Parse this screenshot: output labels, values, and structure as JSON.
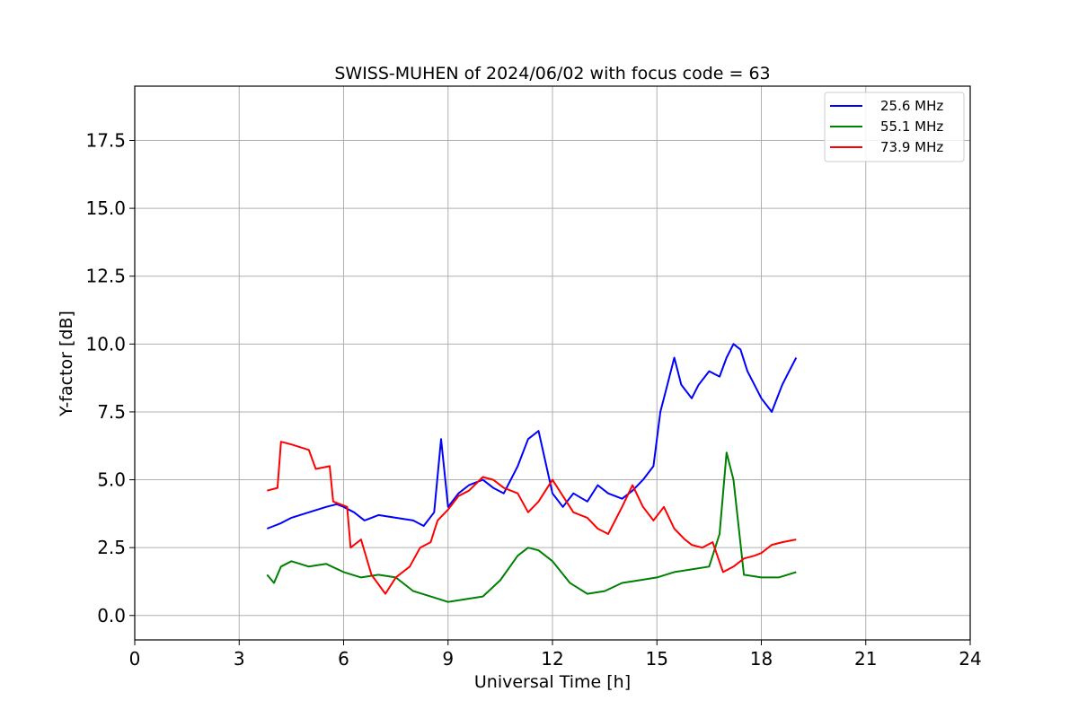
{
  "chart_data": {
    "type": "line",
    "title": "SWISS-MUHEN of 2024/06/02 with focus code = 63",
    "xlabel": "Universal Time [h]",
    "ylabel": "Y-factor [dB]",
    "xlim": [
      0,
      24
    ],
    "ylim": [
      -0.9,
      19.5
    ],
    "xticks": [
      0,
      3,
      6,
      9,
      12,
      15,
      18,
      21,
      24
    ],
    "xtick_labels": [
      "0",
      "3",
      "6",
      "9",
      "12",
      "15",
      "18",
      "21",
      "24"
    ],
    "yticks": [
      0,
      2.5,
      5,
      7.5,
      10,
      12.5,
      15,
      17.5
    ],
    "ytick_labels": [
      "0.0",
      "2.5",
      "5.0",
      "7.5",
      "10.0",
      "12.5",
      "15.0",
      "17.5"
    ],
    "grid": true,
    "legend_position": "top-right",
    "series": [
      {
        "name": "25.6 MHz",
        "color": "#0000ff",
        "x": [
          3.8,
          4.0,
          4.2,
          4.5,
          5.0,
          5.5,
          5.8,
          6.0,
          6.3,
          6.6,
          7.0,
          7.5,
          8.0,
          8.3,
          8.6,
          8.8,
          9.0,
          9.3,
          9.6,
          10.0,
          10.3,
          10.6,
          11.0,
          11.3,
          11.6,
          12.0,
          12.3,
          12.6,
          13.0,
          13.3,
          13.6,
          14.0,
          14.3,
          14.6,
          14.9,
          15.1,
          15.3,
          15.5,
          15.7,
          16.0,
          16.2,
          16.5,
          16.8,
          17.0,
          17.2,
          17.4,
          17.6,
          17.8,
          18.0,
          18.3,
          18.6,
          18.8,
          19.0
        ],
        "y": [
          3.2,
          3.3,
          3.4,
          3.6,
          3.8,
          4.0,
          4.1,
          4.0,
          3.8,
          3.5,
          3.7,
          3.6,
          3.5,
          3.3,
          3.8,
          6.5,
          4.0,
          4.5,
          4.8,
          5.0,
          4.7,
          4.5,
          5.5,
          6.5,
          6.8,
          4.5,
          4.0,
          4.5,
          4.2,
          4.8,
          4.5,
          4.3,
          4.6,
          5.0,
          5.5,
          7.5,
          8.5,
          9.5,
          8.5,
          8.0,
          8.5,
          9.0,
          8.8,
          9.5,
          10.0,
          9.8,
          9.0,
          8.5,
          8.0,
          7.5,
          8.5,
          9.0,
          9.5
        ]
      },
      {
        "name": "55.1 MHz",
        "color": "#008000",
        "x": [
          3.8,
          4.0,
          4.2,
          4.5,
          5.0,
          5.5,
          6.0,
          6.5,
          7.0,
          7.5,
          8.0,
          8.5,
          9.0,
          9.5,
          10.0,
          10.5,
          11.0,
          11.3,
          11.6,
          12.0,
          12.5,
          13.0,
          13.5,
          14.0,
          14.5,
          15.0,
          15.5,
          16.0,
          16.5,
          16.8,
          17.0,
          17.2,
          17.5,
          18.0,
          18.5,
          19.0
        ],
        "y": [
          1.5,
          1.2,
          1.8,
          2.0,
          1.8,
          1.9,
          1.6,
          1.4,
          1.5,
          1.4,
          0.9,
          0.7,
          0.5,
          0.6,
          0.7,
          1.3,
          2.2,
          2.5,
          2.4,
          2.0,
          1.2,
          0.8,
          0.9,
          1.2,
          1.3,
          1.4,
          1.6,
          1.7,
          1.8,
          3.0,
          6.0,
          5.0,
          1.5,
          1.4,
          1.4,
          1.6
        ]
      },
      {
        "name": "73.9 MHz",
        "color": "#ff0000",
        "x": [
          3.8,
          4.1,
          4.2,
          4.5,
          5.0,
          5.2,
          5.6,
          5.7,
          6.1,
          6.2,
          6.5,
          6.8,
          7.2,
          7.5,
          7.9,
          8.2,
          8.5,
          8.7,
          9.0,
          9.3,
          9.6,
          10.0,
          10.3,
          10.6,
          11.0,
          11.3,
          11.6,
          12.0,
          12.3,
          12.6,
          13.0,
          13.3,
          13.6,
          14.0,
          14.3,
          14.6,
          14.9,
          15.2,
          15.5,
          15.8,
          16.0,
          16.3,
          16.6,
          16.9,
          17.2,
          17.5,
          17.8,
          18.0,
          18.3,
          18.6,
          19.0
        ],
        "y": [
          4.6,
          4.7,
          6.4,
          6.3,
          6.1,
          5.4,
          5.5,
          4.2,
          4.0,
          2.5,
          2.8,
          1.5,
          0.8,
          1.4,
          1.8,
          2.5,
          2.7,
          3.5,
          3.9,
          4.4,
          4.6,
          5.1,
          5.0,
          4.7,
          4.5,
          3.8,
          4.2,
          5.0,
          4.4,
          3.8,
          3.6,
          3.2,
          3.0,
          4.0,
          4.8,
          4.0,
          3.5,
          4.0,
          3.2,
          2.8,
          2.6,
          2.5,
          2.7,
          1.6,
          1.8,
          2.1,
          2.2,
          2.3,
          2.6,
          2.7,
          2.8
        ]
      }
    ]
  }
}
